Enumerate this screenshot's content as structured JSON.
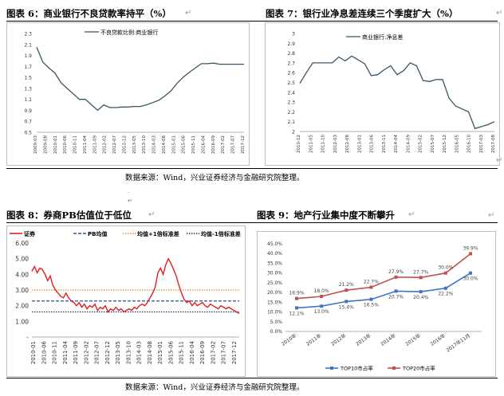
{
  "captions": {
    "fig6": "图表 6：商业银行不良贷款率持平（%）",
    "fig7": "图表 7：银行业净息差连续三个季度扩大（%）",
    "fig8": "图表 8：券商PB估值位于低位",
    "fig9": "图表 9：地产行业集中度不断攀升"
  },
  "para_mark": "↵",
  "source_note_1": "数据来源：Wind，兴业证券经济与金融研究院整理。",
  "source_note_2": "数据来源：Wind，兴业证券经济与金融研究院整理。",
  "stray_dot": ".",
  "stray_dot_2": "↵",
  "chart_data": [
    {
      "type": "line",
      "title": "商业银行不良贷款率持平（%）",
      "series": [
        {
          "name": "不良贷款比例:商业银行",
          "color": "#3b5563",
          "values": [
            2.05,
            1.78,
            1.67,
            1.58,
            1.4,
            1.3,
            1.2,
            1.1,
            1.1,
            1.0,
            0.9,
            1.0,
            0.95,
            0.95,
            0.96,
            0.96,
            0.97,
            0.97,
            1.0,
            1.04,
            1.08,
            1.16,
            1.25,
            1.39,
            1.5,
            1.59,
            1.67,
            1.75,
            1.75,
            1.76,
            1.74,
            1.74,
            1.74,
            1.74,
            1.74
          ]
        }
      ],
      "yticks": [
        "2.3",
        "2.1",
        "1.9",
        "1.7",
        "1.5",
        "1.3",
        "1.1",
        "0.9",
        "0.7",
        "0.5"
      ],
      "ylim": [
        0.5,
        2.3
      ],
      "xticks": [
        "2009-03",
        "2009-08",
        "2010-01",
        "2010-06",
        "2010-11",
        "2011-04",
        "2011-09",
        "2012-02",
        "2012-07",
        "2012-12",
        "2013-05",
        "2013-10",
        "2014-03",
        "2014-08",
        "2015-01",
        "2015-06",
        "2015-11",
        "2016-04",
        "2016-09",
        "2017-02",
        "2017-07",
        "2017-12"
      ]
    },
    {
      "type": "line",
      "title": "银行业净息差连续三个季度扩大（%）",
      "series": [
        {
          "name": "商业银行:净息差",
          "color": "#3b5563",
          "values": [
            2.49,
            2.6,
            2.7,
            2.7,
            2.7,
            2.7,
            2.76,
            2.72,
            2.77,
            2.73,
            2.69,
            2.57,
            2.58,
            2.63,
            2.67,
            2.58,
            2.62,
            2.7,
            2.67,
            2.52,
            2.51,
            2.53,
            2.53,
            2.34,
            2.26,
            2.23,
            2.2,
            2.03,
            2.05,
            2.07,
            2.1
          ]
        }
      ],
      "yticks": [
        "3",
        "2.9",
        "2.8",
        "2.7",
        "2.6",
        "2.5",
        "2.4",
        "2.3",
        "2.2",
        "2.1",
        "2"
      ],
      "ylim": [
        2,
        3
      ],
      "xticks": [
        "2010-12",
        "2011-05",
        "2011-10",
        "2012-03",
        "2012-08",
        "2013-01",
        "2013-06",
        "2013-11",
        "2014-04",
        "2014-09",
        "2015-02",
        "2015-07",
        "2015-12",
        "2016-05",
        "2016-10",
        "2017-03",
        "2017-08"
      ]
    },
    {
      "type": "line",
      "title": "券商PB估值位于低位",
      "legend": [
        {
          "name": "证券",
          "color": "#e02020",
          "style": "solid"
        },
        {
          "name": "PB均值",
          "color": "#2f5597",
          "style": "dashed"
        },
        {
          "name": "均值+1倍标准差",
          "color": "#f08c2e",
          "style": "dotted"
        },
        {
          "name": "均值-1倍标准差",
          "color": "#1f3864",
          "style": "dotted"
        }
      ],
      "mean": 2.3,
      "upper": 3.0,
      "lower": 1.6,
      "series_values": [
        4.2,
        4.5,
        4.1,
        4.4,
        4.3,
        4.0,
        3.6,
        3.9,
        3.3,
        3.0,
        2.8,
        2.6,
        2.5,
        2.8,
        2.5,
        2.3,
        2.2,
        2.0,
        2.2,
        1.9,
        2.1,
        1.8,
        2.0,
        1.9,
        2.1,
        1.7,
        1.9,
        1.8,
        2.0,
        1.6,
        1.8,
        1.7,
        1.9,
        1.7,
        1.8,
        1.6,
        1.7,
        1.8,
        1.7,
        1.9,
        1.8,
        2.0,
        2.1,
        2.0,
        2.2,
        2.5,
        2.8,
        3.2,
        4.1,
        4.4,
        4.0,
        4.6,
        5.0,
        4.7,
        4.3,
        3.9,
        3.3,
        2.8,
        2.4,
        2.2,
        2.3,
        2.0,
        2.2,
        2.0,
        2.1,
        2.2,
        2.0,
        1.9,
        2.1,
        2.0,
        1.9,
        1.8,
        2.0,
        1.9,
        1.8,
        1.9,
        1.8,
        1.7,
        1.6,
        1.5
      ],
      "yticks": [
        "6.00",
        "5.00",
        "4.00",
        "3.00",
        "2.00",
        "1.00",
        "-"
      ],
      "ylim": [
        0,
        6
      ],
      "xticks": [
        "2010-01",
        "2010-06",
        "2010-11",
        "2011-04",
        "2011-09",
        "2012-02",
        "2012-07",
        "2012-12",
        "2013-05",
        "2013-10",
        "2014-03",
        "2014-08",
        "2015-01",
        "2015-06",
        "2015-11",
        "2016-04",
        "2016-09",
        "2017-02",
        "2017-07",
        "2017-12"
      ]
    },
    {
      "type": "line",
      "title": "地产行业集中度不断攀升",
      "categories": [
        "2010年",
        "2011年",
        "2012年",
        "2013年",
        "2014年",
        "2015年",
        "2016年",
        "2017年11月"
      ],
      "series": [
        {
          "name": "TOP10市占率",
          "color": "#4472c4",
          "values": [
            12.1,
            13.0,
            15.4,
            16.5,
            20.7,
            20.4,
            22.2,
            30.0
          ],
          "labels": [
            "12.1%",
            "13.0%",
            "15.4%",
            "16.5%",
            "20.7%",
            "20.4%",
            "22.2%",
            "30.0%"
          ]
        },
        {
          "name": "TOP20市占率",
          "color": "#c0504d",
          "values": [
            16.9,
            18.0,
            21.2,
            22.7,
            27.9,
            27.7,
            30.0,
            39.9
          ],
          "labels": [
            "16.9%",
            "18.0%",
            "21.2%",
            "22.7%",
            "27.9%",
            "27.7%",
            "30.0%",
            "39.9%"
          ]
        }
      ],
      "yticks": [
        "45.0%",
        "40.0%",
        "35.0%",
        "30.0%",
        "25.0%",
        "20.0%",
        "15.0%",
        "10.0%",
        "5.0%",
        "0.0%"
      ],
      "ylim": [
        0,
        45
      ]
    }
  ]
}
